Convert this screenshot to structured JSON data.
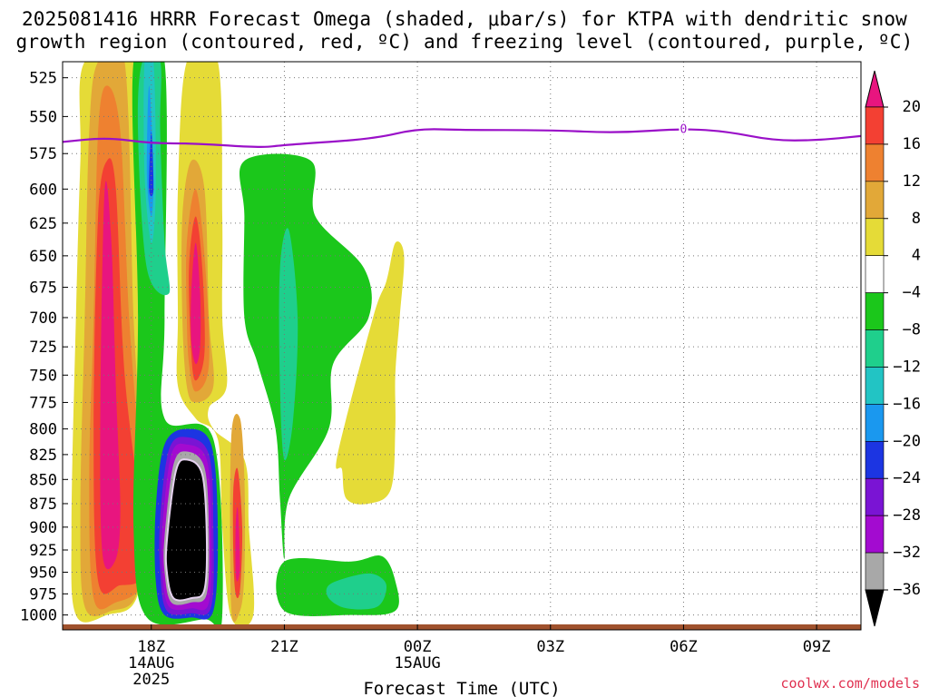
{
  "title_line1": "2025081416 HRRR Forecast Omega (shaded, μbar/s) for KTPA with dendritic snow",
  "title_line2": "growth region (contoured, red, ºC) and freezing level (contoured, purple, ºC)",
  "credit": "coolwx.com/models",
  "chart_data": {
    "type": "heatmap",
    "xlabel": "Forecast Time (UTC)",
    "ylabel": "",
    "x_ticks": [
      {
        "label": "18Z",
        "sub": [
          "14AUG",
          "2025"
        ],
        "hour": 18
      },
      {
        "label": "21Z",
        "sub": [],
        "hour": 21
      },
      {
        "label": "00Z",
        "sub": [
          "15AUG"
        ],
        "hour": 24
      },
      {
        "label": "03Z",
        "sub": [],
        "hour": 27
      },
      {
        "label": "06Z",
        "sub": [],
        "hour": 30
      },
      {
        "label": "09Z",
        "sub": [],
        "hour": 33
      }
    ],
    "xlim": [
      16,
      34
    ],
    "y_ticks": [
      525,
      550,
      575,
      600,
      625,
      650,
      675,
      700,
      725,
      750,
      775,
      800,
      825,
      850,
      875,
      900,
      925,
      950,
      975,
      1000
    ],
    "ylim": [
      515,
      1018
    ],
    "y_scale": "log-pressure",
    "grid": true,
    "colorbar": {
      "labels": [
        "20",
        "16",
        "12",
        "8",
        "4",
        "−4",
        "−8",
        "−12",
        "−16",
        "−20",
        "−24",
        "−28",
        "−32",
        "−36"
      ],
      "colors": [
        "#e8157f",
        "#f34033",
        "#ee8130",
        "#e2a838",
        "#e5db37",
        "#ffffff",
        "#1bc71b",
        "#1fcf8c",
        "#22c4c4",
        "#1a98ef",
        "#1c35e2",
        "#7a14d4",
        "#a30bd0",
        "#a8a8a8",
        "#000000"
      ]
    },
    "freezing_level": {
      "label": "0",
      "label_hour": 30,
      "points": [
        [
          16,
          567
        ],
        [
          17,
          564
        ],
        [
          18,
          568
        ],
        [
          19,
          568
        ],
        [
          20.5,
          571
        ],
        [
          21,
          569
        ],
        [
          23,
          565
        ],
        [
          24,
          558
        ],
        [
          25,
          559
        ],
        [
          27,
          559
        ],
        [
          28.5,
          561
        ],
        [
          30,
          558
        ],
        [
          31,
          560
        ],
        [
          32,
          566
        ],
        [
          33,
          566
        ],
        [
          34,
          563
        ]
      ]
    },
    "omega_regions": [
      {
        "level": "4",
        "color": "#e5db37",
        "points": [
          [
            16.3,
            1000
          ],
          [
            16.2,
            900
          ],
          [
            16.3,
            700
          ],
          [
            16.4,
            580
          ],
          [
            16.5,
            515
          ],
          [
            17.7,
            515
          ],
          [
            17.7,
            700
          ],
          [
            17.9,
            850
          ],
          [
            17.7,
            975
          ],
          [
            17.0,
            1000
          ]
        ]
      },
      {
        "level": "8",
        "color": "#e2a838",
        "points": [
          [
            16.5,
            990
          ],
          [
            16.4,
            880
          ],
          [
            16.5,
            700
          ],
          [
            16.6,
            560
          ],
          [
            16.8,
            515
          ],
          [
            17.4,
            515
          ],
          [
            17.6,
            700
          ],
          [
            17.8,
            850
          ],
          [
            17.7,
            970
          ],
          [
            17.1,
            995
          ]
        ]
      },
      {
        "level": "12",
        "color": "#ee8130",
        "points": [
          [
            16.7,
            980
          ],
          [
            16.6,
            850
          ],
          [
            16.7,
            700
          ],
          [
            16.8,
            560
          ],
          [
            17.0,
            530
          ],
          [
            17.3,
            560
          ],
          [
            17.5,
            700
          ],
          [
            17.8,
            870
          ],
          [
            17.8,
            960
          ],
          [
            17.2,
            985
          ]
        ]
      },
      {
        "level": "16",
        "color": "#f34033",
        "points": [
          [
            16.8,
            960
          ],
          [
            16.7,
            800
          ],
          [
            16.8,
            620
          ],
          [
            17.0,
            580
          ],
          [
            17.2,
            600
          ],
          [
            17.4,
            750
          ],
          [
            17.8,
            900
          ],
          [
            17.8,
            955
          ],
          [
            17.3,
            965
          ]
        ]
      },
      {
        "level": "20",
        "color": "#e8157f",
        "points": [
          [
            16.9,
            930
          ],
          [
            16.85,
            780
          ],
          [
            16.95,
            600
          ],
          [
            17.1,
            640
          ],
          [
            17.2,
            760
          ],
          [
            17.3,
            880
          ],
          [
            17.2,
            935
          ]
        ]
      },
      {
        "level": "-4",
        "color": "#1bc71b",
        "points": [
          [
            17.6,
            515
          ],
          [
            18.3,
            515
          ],
          [
            18.3,
            700
          ],
          [
            18.3,
            790
          ],
          [
            19.4,
            810
          ],
          [
            19.6,
            1000
          ],
          [
            19.2,
            1005
          ],
          [
            17.9,
            1003
          ],
          [
            17.6,
            900
          ],
          [
            17.7,
            700
          ]
        ]
      },
      {
        "level": "-8",
        "color": "#1fcf8c",
        "points": [
          [
            17.7,
            560
          ],
          [
            17.8,
            515
          ],
          [
            18.2,
            515
          ],
          [
            18.2,
            560
          ],
          [
            18.3,
            640
          ],
          [
            18.4,
            680
          ],
          [
            17.9,
            660
          ]
        ]
      },
      {
        "level": "-12",
        "color": "#22c4c4",
        "points": [
          [
            17.85,
            590
          ],
          [
            17.85,
            515
          ],
          [
            18.05,
            515
          ],
          [
            18.1,
            600
          ],
          [
            18.0,
            640
          ]
        ]
      },
      {
        "level": "-16",
        "color": "#1a98ef",
        "points": [
          [
            17.9,
            590
          ],
          [
            17.95,
            530
          ],
          [
            18.05,
            590
          ],
          [
            18.0,
            620
          ]
        ]
      },
      {
        "level": "-20",
        "color": "#1c35e2",
        "points": [
          [
            17.95,
            600
          ],
          [
            18.0,
            560
          ],
          [
            18.05,
            600
          ]
        ]
      },
      {
        "level": "4",
        "color": "#e5db37",
        "points": [
          [
            18.8,
            515
          ],
          [
            19.5,
            515
          ],
          [
            19.6,
            620
          ],
          [
            19.6,
            700
          ],
          [
            19.7,
            760
          ],
          [
            19.3,
            780
          ],
          [
            19.4,
            800
          ],
          [
            20.1,
            830
          ],
          [
            20.2,
            900
          ],
          [
            20.3,
            1000
          ],
          [
            19.8,
            1003
          ],
          [
            19.6,
            900
          ],
          [
            19.5,
            810
          ],
          [
            19.0,
            790
          ],
          [
            18.6,
            760
          ],
          [
            18.6,
            700
          ],
          [
            18.6,
            600
          ]
        ]
      },
      {
        "level": "8",
        "color": "#e2a838",
        "points": [
          [
            18.7,
            620
          ],
          [
            18.9,
            580
          ],
          [
            19.2,
            600
          ],
          [
            19.3,
            700
          ],
          [
            19.4,
            760
          ],
          [
            19.0,
            775
          ],
          [
            18.8,
            760
          ],
          [
            18.7,
            700
          ]
        ]
      },
      {
        "level": "12",
        "color": "#ee8130",
        "points": [
          [
            18.8,
            640
          ],
          [
            19.0,
            600
          ],
          [
            19.2,
            650
          ],
          [
            19.3,
            740
          ],
          [
            19.0,
            765
          ],
          [
            18.85,
            740
          ],
          [
            18.8,
            700
          ]
        ]
      },
      {
        "level": "16",
        "color": "#f34033",
        "points": [
          [
            18.85,
            660
          ],
          [
            19.0,
            620
          ],
          [
            19.15,
            660
          ],
          [
            19.2,
            730
          ],
          [
            19.0,
            755
          ],
          [
            18.9,
            730
          ]
        ]
      },
      {
        "level": "20",
        "color": "#e8157f",
        "points": [
          [
            18.9,
            680
          ],
          [
            19.0,
            640
          ],
          [
            19.1,
            680
          ],
          [
            19.1,
            725
          ],
          [
            19.0,
            740
          ],
          [
            18.9,
            720
          ]
        ]
      },
      {
        "level": "8",
        "color": "#e2a838",
        "points": [
          [
            19.8,
            810
          ],
          [
            20.0,
            790
          ],
          [
            20.1,
            850
          ],
          [
            20.1,
            950
          ],
          [
            20.0,
            995
          ],
          [
            19.8,
            990
          ]
        ]
      },
      {
        "level": "16",
        "color": "#f34033",
        "points": [
          [
            19.85,
            860
          ],
          [
            19.95,
            840
          ],
          [
            20.05,
            900
          ],
          [
            20.0,
            970
          ],
          [
            19.9,
            975
          ],
          [
            19.85,
            930
          ]
        ]
      },
      {
        "level": "20",
        "color": "#e8157f",
        "points": [
          [
            19.9,
            900
          ],
          [
            19.95,
            880
          ],
          [
            20.0,
            940
          ],
          [
            19.95,
            960
          ],
          [
            19.9,
            950
          ]
        ]
      },
      {
        "level": "-24",
        "color": "#1c35e2",
        "points": [
          [
            18.1,
            880
          ],
          [
            18.3,
            815
          ],
          [
            18.8,
            800
          ],
          [
            19.35,
            815
          ],
          [
            19.5,
            900
          ],
          [
            19.4,
            995
          ],
          [
            18.9,
            1003
          ],
          [
            18.3,
            1000
          ],
          [
            18.1,
            960
          ]
        ]
      },
      {
        "level": "-28",
        "color": "#7a14d4",
        "points": [
          [
            18.2,
            890
          ],
          [
            18.4,
            820
          ],
          [
            18.8,
            808
          ],
          [
            19.3,
            825
          ],
          [
            19.4,
            900
          ],
          [
            19.35,
            990
          ],
          [
            18.9,
            998
          ],
          [
            18.35,
            995
          ],
          [
            18.2,
            950
          ]
        ]
      },
      {
        "level": "-32",
        "color": "#a30bd0",
        "points": [
          [
            18.25,
            900
          ],
          [
            18.45,
            825
          ],
          [
            18.8,
            815
          ],
          [
            19.25,
            830
          ],
          [
            19.35,
            900
          ],
          [
            19.3,
            985
          ],
          [
            18.9,
            992
          ],
          [
            18.4,
            990
          ],
          [
            18.25,
            950
          ]
        ]
      },
      {
        "level": "-36",
        "color": "#a8a8a8",
        "points": [
          [
            18.3,
            910
          ],
          [
            18.5,
            835
          ],
          [
            18.8,
            822
          ],
          [
            19.2,
            838
          ],
          [
            19.3,
            905
          ],
          [
            19.25,
            975
          ],
          [
            18.9,
            985
          ],
          [
            18.45,
            985
          ],
          [
            18.3,
            950
          ]
        ]
      },
      {
        "level": "-40",
        "color": "#000000",
        "points": [
          [
            18.35,
            915
          ],
          [
            18.55,
            842
          ],
          [
            18.8,
            830
          ],
          [
            19.15,
            845
          ],
          [
            19.25,
            910
          ],
          [
            19.2,
            970
          ],
          [
            18.9,
            980
          ],
          [
            18.5,
            980
          ],
          [
            18.35,
            950
          ]
        ]
      },
      {
        "level": "-4",
        "color": "#1bc71b",
        "points": [
          [
            20.1,
            580
          ],
          [
            21.6,
            580
          ],
          [
            21.7,
            620
          ],
          [
            22.8,
            660
          ],
          [
            22.9,
            700
          ],
          [
            22.1,
            740
          ],
          [
            22.0,
            800
          ],
          [
            21.1,
            870
          ],
          [
            21.0,
            935
          ],
          [
            20.9,
            870
          ],
          [
            20.8,
            800
          ],
          [
            20.4,
            740
          ],
          [
            20.1,
            700
          ],
          [
            20.1,
            620
          ]
        ]
      },
      {
        "level": "-8",
        "color": "#1fcf8c",
        "points": [
          [
            20.9,
            660
          ],
          [
            21.1,
            630
          ],
          [
            21.3,
            700
          ],
          [
            21.2,
            790
          ],
          [
            21.0,
            830
          ],
          [
            20.9,
            760
          ]
        ]
      },
      {
        "level": "-4",
        "color": "#1bc71b",
        "points": [
          [
            21.0,
            938
          ],
          [
            22.5,
            938
          ],
          [
            23.2,
            932
          ],
          [
            23.5,
            960
          ],
          [
            23.5,
            995
          ],
          [
            22.5,
            1000
          ],
          [
            21.0,
            995
          ]
        ]
      },
      {
        "level": "-8",
        "color": "#1fcf8c",
        "points": [
          [
            22.0,
            965
          ],
          [
            22.5,
            955
          ],
          [
            23.0,
            952
          ],
          [
            23.3,
            965
          ],
          [
            23.1,
            990
          ],
          [
            22.4,
            992
          ],
          [
            22.0,
            980
          ]
        ]
      },
      {
        "level": "4",
        "color": "#e5db37",
        "points": [
          [
            22.2,
            825
          ],
          [
            23.0,
            700
          ],
          [
            23.3,
            670
          ],
          [
            23.5,
            640
          ],
          [
            23.7,
            650
          ],
          [
            23.6,
            700
          ],
          [
            23.5,
            750
          ],
          [
            23.5,
            800
          ],
          [
            23.4,
            860
          ],
          [
            22.9,
            875
          ],
          [
            22.4,
            870
          ],
          [
            22.3,
            840
          ]
        ]
      }
    ],
    "surface_bar": {
      "color": "#a0522d"
    }
  }
}
